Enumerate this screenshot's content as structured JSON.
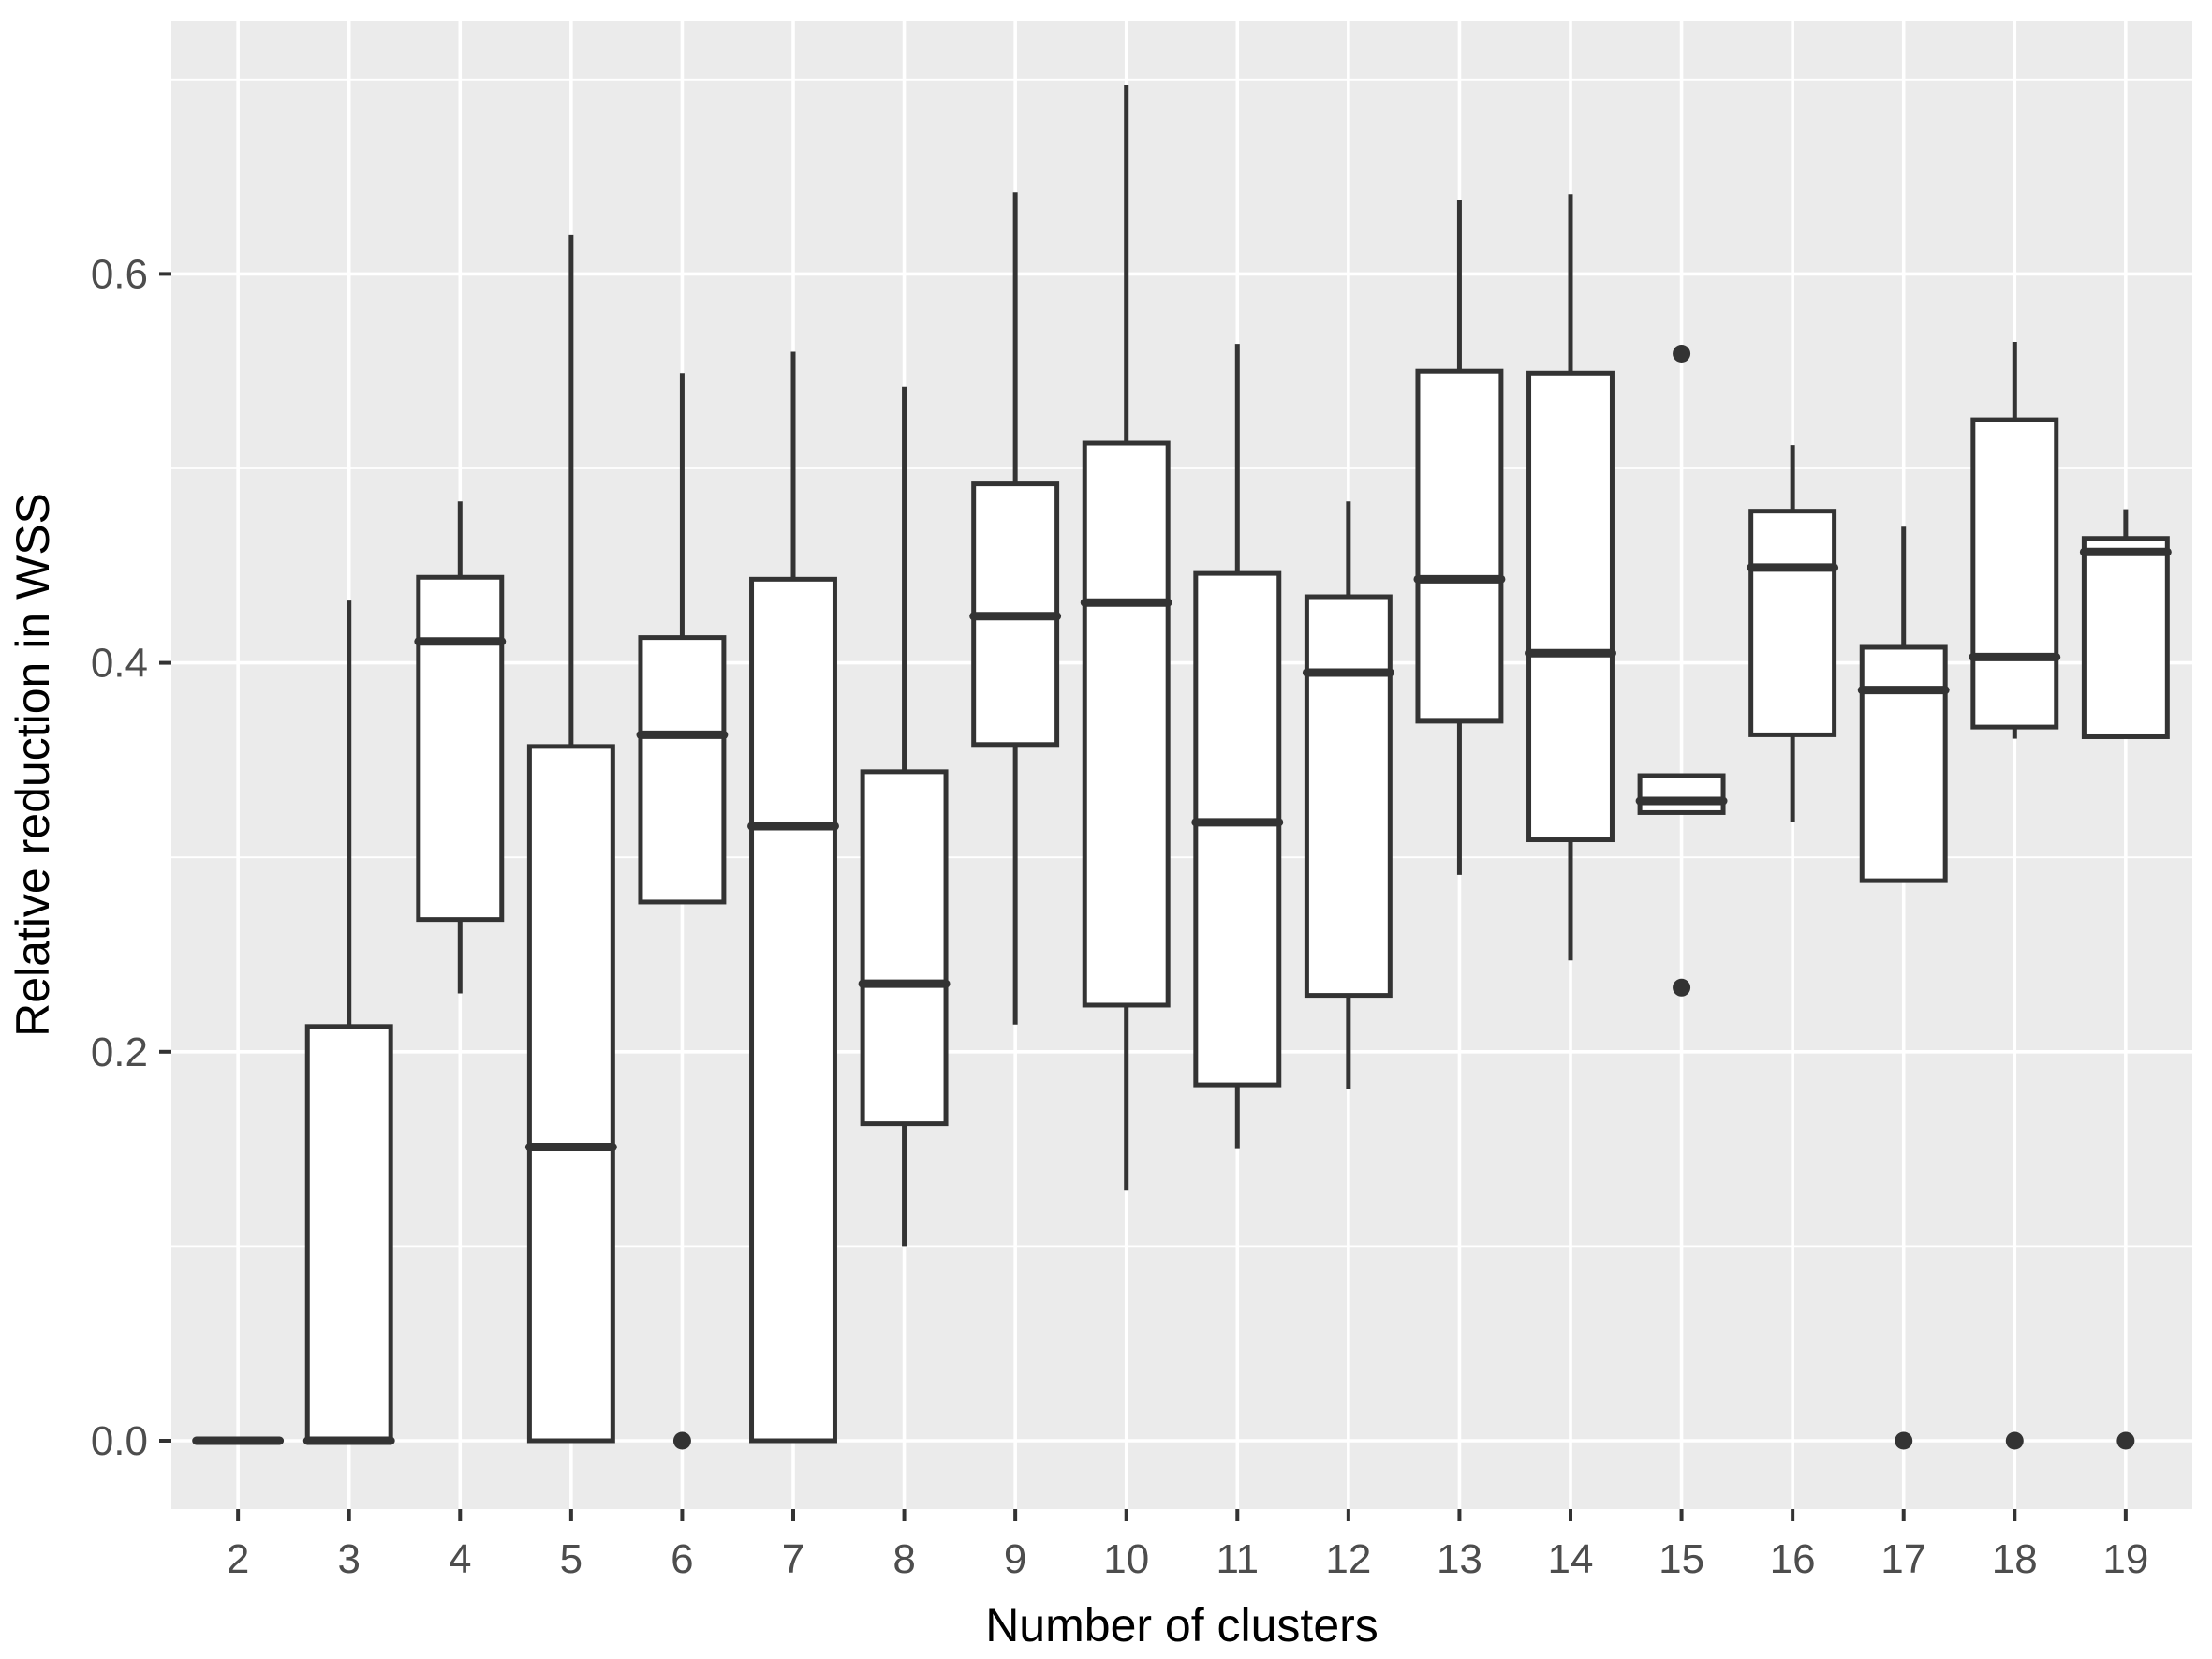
{
  "chart_data": {
    "type": "boxplot",
    "title": "",
    "xlabel": "Number of clusters",
    "ylabel": "Relative reduction in WSS",
    "x_categories": [
      "2",
      "3",
      "4",
      "5",
      "6",
      "7",
      "8",
      "9",
      "10",
      "11",
      "12",
      "13",
      "14",
      "15",
      "16",
      "17",
      "18",
      "19"
    ],
    "y_ticks": [
      0.0,
      0.2,
      0.4,
      0.6
    ],
    "y_tick_labels": [
      "0.0",
      "0.2",
      "0.4",
      "0.6"
    ],
    "y_minor_ticks": [
      0.1,
      0.3,
      0.5,
      0.7
    ],
    "ylim": [
      -0.035,
      0.73
    ],
    "grid": true,
    "legend": "none",
    "colors": {
      "panel_background": "#EBEBEB",
      "grid_major": "#FFFFFF",
      "grid_minor": "#FFFFFF",
      "box_fill": "#FFFFFF",
      "box_stroke": "#333333",
      "tick_label": "#4D4D4D",
      "axis_title": "#000000",
      "tick_mark": "#333333",
      "outlier": "#333333"
    },
    "boxes": [
      {
        "cluster": "2",
        "q1": 0.0,
        "median": 0.0,
        "q3": 0.0,
        "whisker_low": 0.0,
        "whisker_high": 0.0,
        "outliers": []
      },
      {
        "cluster": "3",
        "q1": 0.0,
        "median": 0.0,
        "q3": 0.213,
        "whisker_low": 0.0,
        "whisker_high": 0.432,
        "outliers": []
      },
      {
        "cluster": "4",
        "q1": 0.268,
        "median": 0.411,
        "q3": 0.444,
        "whisker_low": 0.23,
        "whisker_high": 0.483,
        "outliers": []
      },
      {
        "cluster": "5",
        "q1": 0.0,
        "median": 0.151,
        "q3": 0.357,
        "whisker_low": 0.0,
        "whisker_high": 0.62,
        "outliers": []
      },
      {
        "cluster": "6",
        "q1": 0.277,
        "median": 0.363,
        "q3": 0.413,
        "whisker_low": 0.277,
        "whisker_high": 0.549,
        "outliers": [
          0.0
        ]
      },
      {
        "cluster": "7",
        "q1": 0.0,
        "median": 0.316,
        "q3": 0.443,
        "whisker_low": 0.0,
        "whisker_high": 0.56,
        "outliers": []
      },
      {
        "cluster": "8",
        "q1": 0.163,
        "median": 0.235,
        "q3": 0.344,
        "whisker_low": 0.1,
        "whisker_high": 0.542,
        "outliers": []
      },
      {
        "cluster": "9",
        "q1": 0.358,
        "median": 0.424,
        "q3": 0.492,
        "whisker_low": 0.214,
        "whisker_high": 0.642,
        "outliers": []
      },
      {
        "cluster": "10",
        "q1": 0.224,
        "median": 0.431,
        "q3": 0.513,
        "whisker_low": 0.129,
        "whisker_high": 0.697,
        "outliers": []
      },
      {
        "cluster": "11",
        "q1": 0.183,
        "median": 0.318,
        "q3": 0.446,
        "whisker_low": 0.15,
        "whisker_high": 0.564,
        "outliers": []
      },
      {
        "cluster": "12",
        "q1": 0.229,
        "median": 0.395,
        "q3": 0.434,
        "whisker_low": 0.181,
        "whisker_high": 0.483,
        "outliers": []
      },
      {
        "cluster": "13",
        "q1": 0.37,
        "median": 0.443,
        "q3": 0.55,
        "whisker_low": 0.291,
        "whisker_high": 0.638,
        "outliers": []
      },
      {
        "cluster": "14",
        "q1": 0.309,
        "median": 0.405,
        "q3": 0.549,
        "whisker_low": 0.247,
        "whisker_high": 0.641,
        "outliers": []
      },
      {
        "cluster": "15",
        "q1": 0.323,
        "median": 0.329,
        "q3": 0.342,
        "whisker_low": 0.323,
        "whisker_high": 0.342,
        "outliers": [
          0.559,
          0.233
        ]
      },
      {
        "cluster": "16",
        "q1": 0.363,
        "median": 0.449,
        "q3": 0.478,
        "whisker_low": 0.318,
        "whisker_high": 0.512,
        "outliers": []
      },
      {
        "cluster": "17",
        "q1": 0.288,
        "median": 0.386,
        "q3": 0.408,
        "whisker_low": 0.288,
        "whisker_high": 0.47,
        "outliers": [
          0.0
        ]
      },
      {
        "cluster": "18",
        "q1": 0.367,
        "median": 0.403,
        "q3": 0.525,
        "whisker_low": 0.361,
        "whisker_high": 0.565,
        "outliers": [
          0.0
        ]
      },
      {
        "cluster": "19",
        "q1": 0.362,
        "median": 0.457,
        "q3": 0.464,
        "whisker_low": 0.362,
        "whisker_high": 0.479,
        "outliers": [
          0.0
        ]
      }
    ]
  }
}
